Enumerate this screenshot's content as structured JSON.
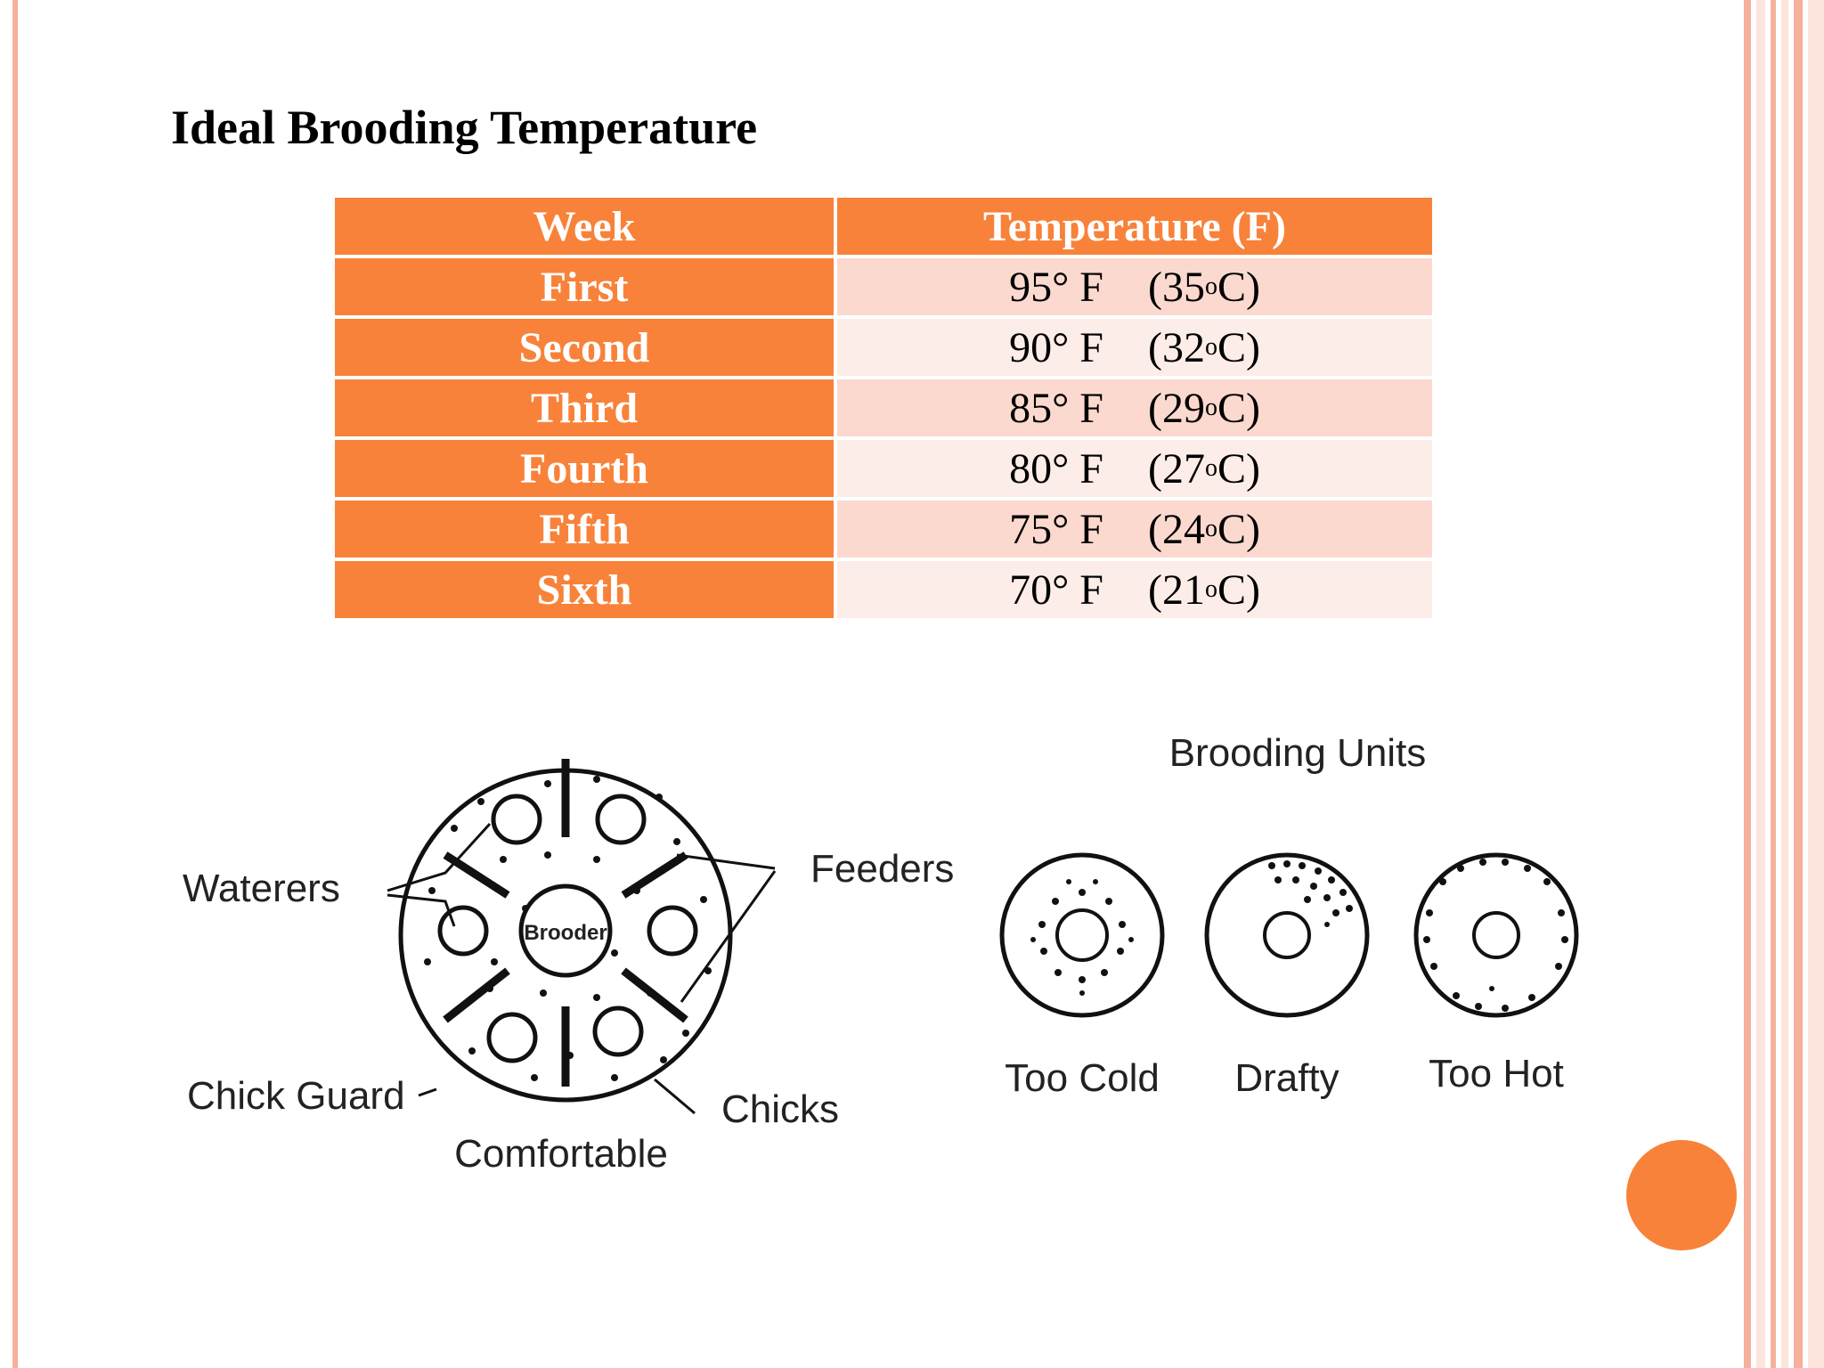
{
  "title": "Ideal Brooding Temperature",
  "table": {
    "headers": [
      "Week",
      "Temperature (F)"
    ],
    "rows": [
      {
        "week": "First",
        "f": "95° F",
        "c_num": "35",
        "c_sup": "o",
        "c_unit": "C"
      },
      {
        "week": "Second",
        "f": "90° F",
        "c_num": "32",
        "c_sup": "o",
        "c_unit": "C"
      },
      {
        "week": "Third",
        "f": "85° F",
        "c_num": "29",
        "c_sup": "o",
        "c_unit": "C"
      },
      {
        "week": "Fourth",
        "f": "80° F",
        "c_num": "27",
        "c_sup": "o",
        "c_unit": "C"
      },
      {
        "week": "Fifth",
        "f": "75° F",
        "c_num": "24",
        "c_sup": "o",
        "c_unit": "C"
      },
      {
        "week": "Sixth",
        "f": "70° F",
        "c_num": "21",
        "c_sup": "o",
        "c_unit": "C"
      }
    ]
  },
  "diagram": {
    "brooder_label": "Brooder",
    "waterers": "Waterers",
    "feeders": "Feeders",
    "chick_guard": "Chick Guard",
    "chicks": "Chicks",
    "comfortable": "Comfortable",
    "units_title": "Brooding Units",
    "too_cold": "Too Cold",
    "drafty": "Drafty",
    "too_hot": "Too Hot"
  },
  "colors": {
    "accent": "#f8823a",
    "row_light": "#fbd9cf",
    "row_lighter": "#fdede8",
    "frame": "#f6b09c"
  }
}
